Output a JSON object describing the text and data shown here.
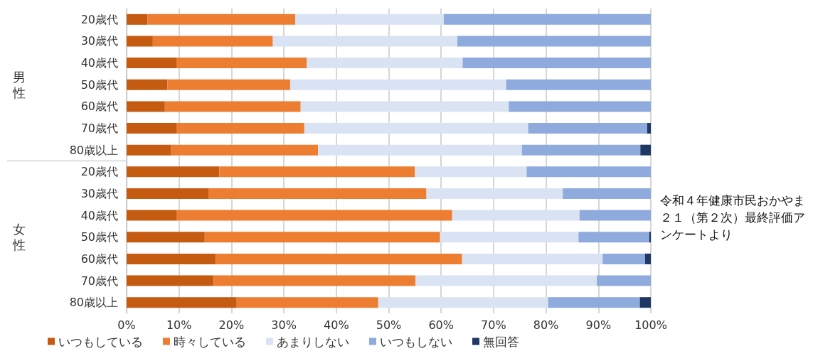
{
  "chart_data": {
    "type": "bar",
    "orientation": "horizontal",
    "stacked": true,
    "categories": [
      "20歳代",
      "30歳代",
      "40歳代",
      "50歳代",
      "60歳代",
      "70歳代",
      "80歳以上",
      "20歳代",
      "30歳代",
      "40歳代",
      "50歳代",
      "60歳代",
      "70歳代",
      "80歳以上"
    ],
    "series": [
      {
        "name": "いつもしている",
        "color": "#c55a11",
        "values": [
          4.0,
          5.0,
          9.6,
          7.8,
          7.3,
          9.6,
          8.5,
          17.7,
          15.6,
          9.6,
          14.9,
          17.0,
          16.6,
          21.0
        ]
      },
      {
        "name": "時々している",
        "color": "#ed7d31",
        "values": [
          28.2,
          22.9,
          24.8,
          23.4,
          25.9,
          24.3,
          28.0,
          37.3,
          41.6,
          52.5,
          44.9,
          47.0,
          38.5,
          27.0
        ]
      },
      {
        "name": "あまりしない",
        "color": "#dae3f3",
        "values": [
          28.3,
          35.2,
          29.7,
          41.2,
          39.7,
          42.7,
          38.9,
          21.3,
          26.0,
          24.3,
          26.4,
          26.8,
          34.6,
          32.4
        ]
      },
      {
        "name": "いつもしない",
        "color": "#8faadc",
        "values": [
          39.5,
          36.9,
          35.9,
          27.6,
          27.1,
          22.7,
          22.6,
          23.7,
          16.8,
          13.6,
          13.5,
          8.1,
          10.3,
          17.5
        ]
      },
      {
        "name": "無回答",
        "color": "#203864",
        "values": [
          0,
          0,
          0,
          0,
          0,
          0.7,
          2.0,
          0,
          0,
          0,
          0.3,
          1.1,
          0,
          2.1
        ]
      }
    ],
    "xlim": [
      0,
      100
    ],
    "xticks": [
      {
        "value": 0,
        "label": "0%"
      },
      {
        "value": 10,
        "label": "10%"
      },
      {
        "value": 20,
        "label": "20%"
      },
      {
        "value": 30,
        "label": "30%"
      },
      {
        "value": 40,
        "label": "40%"
      },
      {
        "value": 50,
        "label": "50%"
      },
      {
        "value": 60,
        "label": "60%"
      },
      {
        "value": 70,
        "label": "70%"
      },
      {
        "value": 80,
        "label": "80%"
      },
      {
        "value": 90,
        "label": "90%"
      },
      {
        "value": 100,
        "label": "100%"
      }
    ],
    "grid": "x",
    "legend": "bottom left",
    "annotations": [
      "男性",
      "女性",
      "令和４年健康市民おかやま２１（第２次）最終評価アンケートより"
    ]
  }
}
